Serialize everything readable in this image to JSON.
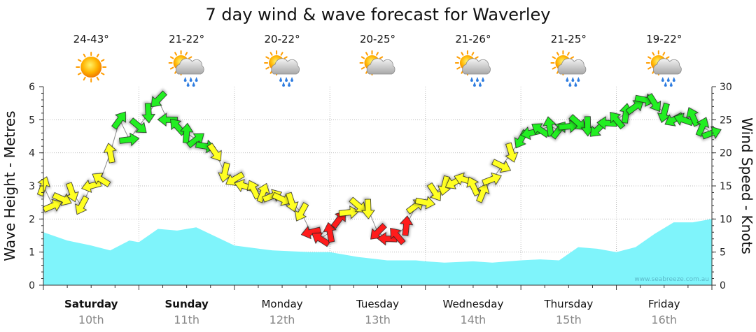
{
  "chart_data": {
    "type": "area",
    "title": "7 day wind & wave forecast for Waverley",
    "ylabel": "Wave Height - Metres",
    "y2label": "Wind Speed - Knots",
    "ylim": [
      0,
      6
    ],
    "y2lim": [
      0,
      30
    ],
    "yticks": [
      "0",
      "1",
      "2",
      "3",
      "4",
      "5",
      "6"
    ],
    "y2ticks": [
      "0",
      "5",
      "10",
      "15",
      "20",
      "25",
      "30"
    ],
    "watermark": "www.seabreeze.com.au",
    "days": [
      {
        "name": "Saturday",
        "date": "10th",
        "temp": "24-43°",
        "icon": "sun-icon",
        "bold": true
      },
      {
        "name": "Sunday",
        "date": "11th",
        "temp": "21-22°",
        "icon": "sun-rain-icon",
        "bold": true
      },
      {
        "name": "Monday",
        "date": "12th",
        "temp": "20-22°",
        "icon": "sun-rain-icon",
        "bold": false
      },
      {
        "name": "Tuesday",
        "date": "13th",
        "temp": "20-25°",
        "icon": "sun-cloud-icon",
        "bold": false
      },
      {
        "name": "Wednesday",
        "date": "14th",
        "temp": "21-26°",
        "icon": "sun-rain-icon",
        "bold": false
      },
      {
        "name": "Thursday",
        "date": "15th",
        "temp": "21-25°",
        "icon": "sun-rain-icon",
        "bold": false
      },
      {
        "name": "Friday",
        "date": "16th",
        "temp": "19-22°",
        "icon": "sun-rain-icon",
        "bold": false
      }
    ],
    "wave_series": {
      "name": "Wave Height",
      "color": "#7ff4fb",
      "x_days": [
        0,
        0.25,
        0.5,
        0.7,
        0.9,
        1.0,
        1.2,
        1.4,
        1.6,
        2.0,
        2.4,
        2.8,
        3.0,
        3.3,
        3.6,
        3.9,
        4.0,
        4.2,
        4.5,
        4.7,
        5.0,
        5.2,
        5.4,
        5.6,
        5.8,
        6.0,
        6.2,
        6.4,
        6.6,
        6.8,
        7.0
      ],
      "values": [
        1.6,
        1.35,
        1.2,
        1.05,
        1.35,
        1.3,
        1.7,
        1.65,
        1.75,
        1.2,
        1.05,
        1.0,
        1.0,
        0.85,
        0.75,
        0.75,
        0.72,
        0.68,
        0.72,
        0.68,
        0.75,
        0.78,
        0.75,
        1.15,
        1.1,
        1.0,
        1.15,
        1.55,
        1.9,
        1.9,
        2.0
      ]
    },
    "wind_series": {
      "name": "Wind Speed",
      "x_days": [
        0.0,
        0.1,
        0.2,
        0.3,
        0.4,
        0.5,
        0.6,
        0.7,
        0.8,
        0.9,
        1.0,
        1.1,
        1.2,
        1.3,
        1.4,
        1.5,
        1.6,
        1.7,
        1.8,
        1.9,
        2.0,
        2.1,
        2.2,
        2.3,
        2.4,
        2.5,
        2.6,
        2.7,
        2.8,
        2.9,
        3.0,
        3.1,
        3.2,
        3.3,
        3.4,
        3.5,
        3.6,
        3.7,
        3.8,
        3.9,
        4.0,
        4.1,
        4.2,
        4.3,
        4.4,
        4.5,
        4.6,
        4.7,
        4.8,
        4.9,
        5.0,
        5.1,
        5.2,
        5.3,
        5.4,
        5.5,
        5.6,
        5.7,
        5.8,
        5.9,
        6.0,
        6.1,
        6.2,
        6.3,
        6.4,
        6.5,
        6.6,
        6.7,
        6.8,
        6.9,
        7.0
      ],
      "values": [
        15,
        12,
        13,
        14,
        12,
        15,
        16,
        20,
        25,
        22,
        24,
        26,
        28,
        25,
        24,
        23,
        22,
        21,
        20,
        17,
        16,
        15,
        14.5,
        14,
        13.5,
        13,
        12.5,
        11,
        8,
        7,
        8,
        10,
        11,
        12,
        11.5,
        8,
        7,
        7.5,
        9,
        12,
        12.5,
        14,
        15,
        15.5,
        16,
        15,
        14,
        16,
        18,
        20,
        22,
        23,
        23.5,
        24,
        23.5,
        24,
        24.5,
        24,
        23.5,
        24.5,
        25,
        26,
        27,
        28,
        27.5,
        26,
        25,
        25,
        25.5,
        24,
        23
      ],
      "thresholds": [
        {
          "max": 10,
          "color": "#ff1a1a"
        },
        {
          "max": 20,
          "color": "#ffff22"
        },
        {
          "max": 99,
          "color": "#22ee22"
        }
      ]
    }
  }
}
